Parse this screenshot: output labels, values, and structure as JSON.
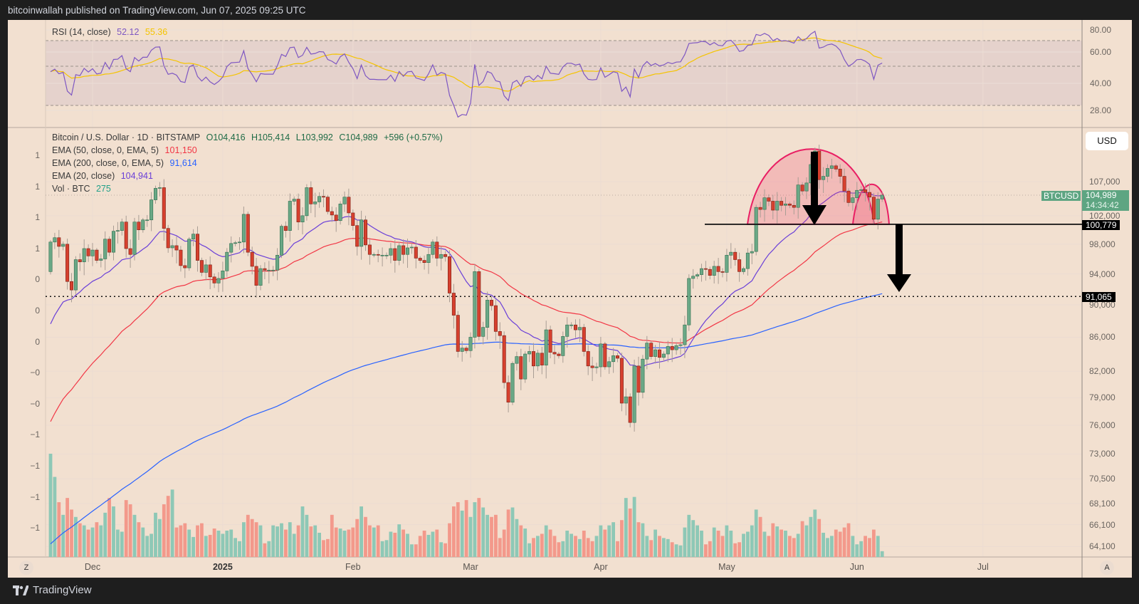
{
  "header": {
    "title": "bitcoinwallah published on TradingView.com, Jun 07, 2025 09:25 UTC"
  },
  "footer": {
    "brand": "TradingView"
  },
  "rsi": {
    "label": "RSI (14, close)",
    "value": "52.12",
    "ma_value": "55.36",
    "axis": [
      "80.00",
      "60.00",
      "40.00",
      "28.00"
    ],
    "levels": [
      70,
      50,
      30
    ]
  },
  "legend": {
    "symbol": "Bitcoin / U.S. Dollar · 1D · BITSTAMP",
    "open": "O104,416",
    "high": "H105,414",
    "low": "L103,992",
    "close": "C104,989",
    "change": "+596 (+0.57%)",
    "ema50_label": "EMA (50, close, 0, EMA, 5)",
    "ema50_value": "101,150",
    "ema200_label": "EMA (200, close, 0, EMA, 5)",
    "ema200_value": "91,614",
    "ema20_label": "EMA (20, close)",
    "ema20_value": "104,941",
    "vol_label": "Vol · BTC",
    "vol_value": "275"
  },
  "price_axis": {
    "currency": "USD",
    "ticks": [
      "107,000",
      "102,000",
      "98,000",
      "94,000",
      "90,000",
      "86,000",
      "82,000",
      "79,000",
      "76,000",
      "73,000",
      "70,500",
      "68,100",
      "66,100",
      "64,100"
    ],
    "tick_values": [
      107000,
      102000,
      98000,
      94000,
      90000,
      86000,
      82000,
      79000,
      76000,
      73000,
      70500,
      68100,
      66100,
      64100
    ],
    "symbol_tag": "BTCUSD",
    "last_price": "104,989",
    "countdown": "14:34:42",
    "neckline": "100,779",
    "target": "91,065"
  },
  "left_axis": {
    "ticks": [
      "1",
      "1",
      "1",
      "1",
      "0",
      "0",
      "0",
      "−0",
      "−0",
      "−1",
      "−1",
      "−1",
      "−1"
    ]
  },
  "time_axis": {
    "labels": [
      {
        "text": "Dec",
        "day": 10,
        "bold": false
      },
      {
        "text": "2025",
        "day": 41,
        "bold": true
      },
      {
        "text": "Feb",
        "day": 72,
        "bold": false
      },
      {
        "text": "Mar",
        "day": 100,
        "bold": false
      },
      {
        "text": "Apr",
        "day": 131,
        "bold": false
      },
      {
        "text": "May",
        "day": 161,
        "bold": false
      },
      {
        "text": "Jun",
        "day": 192,
        "bold": false
      },
      {
        "text": "Jul",
        "day": 222,
        "bold": false
      }
    ],
    "left_button": "Z",
    "right_button": "A"
  },
  "colors": {
    "up": "#6aa886",
    "down": "#d6402e",
    "ema20": "#6a3fd8",
    "ema50": "#f23645",
    "ema200": "#2962ff",
    "rsi": "#7e57c2",
    "rsi_ma": "#f5c400",
    "pattern": "#e91e63",
    "vol_up": "#8ec8b6",
    "vol_down": "#f3998b"
  },
  "chart_data": {
    "type": "candlestick",
    "title": "Bitcoin / U.S. Dollar · 1D · BITSTAMP",
    "x_start": "2024-11-21",
    "x_end": "2025-06-07",
    "first_open": 94300,
    "last_bar": {
      "open": 104416,
      "high": 105414,
      "low": 103992,
      "close": 104989
    },
    "close": [
      98300,
      98900,
      97700,
      98000,
      93000,
      91900,
      95900,
      95600,
      97400,
      96400,
      97200,
      95800,
      96000,
      98700,
      96900,
      99800,
      99900,
      101100,
      97400,
      96600,
      101100,
      100000,
      101400,
      101400,
      104300,
      106000,
      106100,
      100200,
      97500,
      97800,
      97200,
      95100,
      94800,
      98700,
      99400,
      95800,
      94200,
      95200,
      93600,
      92800,
      93400,
      94400,
      96900,
      98100,
      98200,
      98300,
      102200,
      96900,
      95000,
      92500,
      94700,
      94500,
      94500,
      94500,
      96500,
      100500,
      99900,
      104100,
      104400,
      101100,
      102000,
      106100,
      103700,
      104000,
      104800,
      104700,
      102600,
      102100,
      101300,
      103700,
      104700,
      102400,
      100600,
      97700,
      101400,
      97900,
      96600,
      96600,
      96500,
      96500,
      96500,
      97400,
      95800,
      97800,
      96600,
      97500,
      97600,
      96100,
      95800,
      95500,
      96600,
      98300,
      96100,
      96600,
      96300,
      91500,
      88700,
      84300,
      84700,
      84400,
      86000,
      94300,
      86100,
      87200,
      90600,
      89900,
      86700,
      86200,
      80700,
      78500,
      82900,
      83700,
      81100,
      84000,
      84300,
      82600,
      84100,
      82700,
      86900,
      84200,
      84000,
      83800,
      86100,
      87500,
      87500,
      86900,
      87200,
      84300,
      82600,
      82400,
      82500,
      85200,
      82500,
      83100,
      83800,
      83500,
      78400,
      79100,
      76300,
      82600,
      79600,
      83400,
      85300,
      83700,
      84500,
      83600,
      84000,
      84900,
      84500,
      85000,
      85100,
      87500,
      93400,
      93700,
      93900,
      94700,
      94600,
      93800,
      95000,
      94300,
      94200,
      96500,
      96900,
      95900,
      94300,
      94700,
      96800,
      97000,
      103200,
      102900,
      104600,
      104100,
      102800,
      104100,
      103500,
      103700,
      103500,
      103200,
      106500,
      105600,
      106800,
      109600,
      111700,
      107300,
      107800,
      109000,
      109400,
      108900,
      107800,
      105600,
      103900,
      104600,
      105700,
      105800,
      105400,
      104700,
      101500,
      104400,
      104989
    ],
    "volume": [
      4900,
      3800,
      2600,
      2000,
      2800,
      2250,
      1900,
      1600,
      1500,
      1300,
      1400,
      1650,
      1500,
      2100,
      2800,
      2400,
      1300,
      1200,
      2700,
      2500,
      2000,
      1650,
      1400,
      1000,
      1100,
      2100,
      1800,
      2500,
      2900,
      3200,
      1400,
      1500,
      1600,
      1300,
      950,
      1500,
      1600,
      1000,
      1050,
      1350,
      1250,
      1100,
      1250,
      1300,
      900,
      750,
      1650,
      2000,
      1800,
      1650,
      1500,
      650,
      750,
      1500,
      1450,
      1600,
      1300,
      1650,
      1100,
      1500,
      2400,
      2000,
      1450,
      1500,
      1150,
      800,
      850,
      2000,
      1400,
      1350,
      1250,
      1300,
      1400,
      1800,
      2400,
      1900,
      1500,
      1400,
      1500,
      750,
      800,
      1200,
      1150,
      1550,
      1300,
      1100,
      600,
      600,
      1000,
      1250,
      1050,
      1200,
      1300,
      700,
      650,
      1600,
      2400,
      2600,
      2200,
      2700,
      1900,
      2600,
      2800,
      2350,
      2000,
      1900,
      2000,
      900,
      1300,
      2250,
      2350,
      1800,
      1500,
      1350,
      650,
      900,
      1000,
      1100,
      1500,
      1300,
      1000,
      700,
      750,
      1250,
      1100,
      1000,
      850,
      1250,
      900,
      750,
      1000,
      1500,
      1300,
      1500,
      1650,
      750,
      1750,
      2800,
      2300,
      2850,
      1650,
      1600,
      1000,
      800,
      1300,
      1000,
      900,
      850,
      700,
      600,
      550,
      1400,
      2000,
      1750,
      1500,
      1250,
      600,
      750,
      1400,
      1250,
      1000,
      1500,
      1250,
      650,
      700,
      1100,
      1200,
      1500,
      2250,
      1900,
      1200,
      1000,
      1600,
      1450,
      1300,
      1250,
      1000,
      900,
      1100,
      1700,
      1500,
      1900,
      2250,
      1800,
      1150,
      900,
      1000,
      1300,
      1200,
      1400,
      1600,
      1000,
      600,
      750,
      1000,
      900,
      1300,
      1000,
      275
    ],
    "ema_seeds": {
      "ema20": 86500,
      "ema50": 75500,
      "ema200": 64000
    },
    "annotations": {
      "neckline_price": 100779,
      "target_price": 91065,
      "pattern": "head-and-shoulders-arcs"
    },
    "yscale": "log",
    "grid": true
  }
}
